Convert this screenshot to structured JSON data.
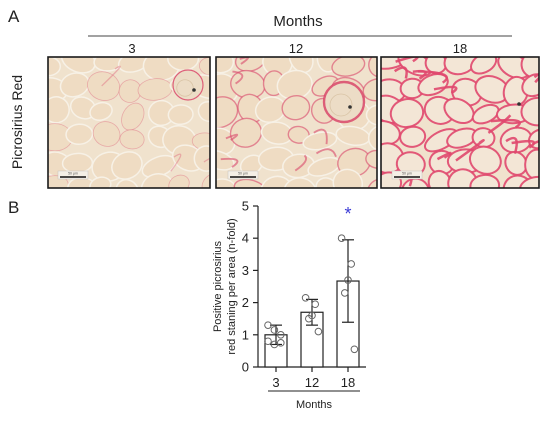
{
  "panel_a": {
    "label": "A",
    "group_title": "Months",
    "stain_label": "Picrosirius Red",
    "images": [
      {
        "month": "3",
        "scale_text": "50 μm",
        "pink": "#d9486a",
        "texture": "light",
        "vessel": true
      },
      {
        "month": "12",
        "scale_text": "50 μm",
        "pink": "#d9486a",
        "texture": "medium",
        "vessel": true
      },
      {
        "month": "18",
        "scale_text": "50 μm",
        "pink": "#e0486e",
        "texture": "heavy",
        "vessel": false
      }
    ],
    "colors": {
      "tissue": "#f0e2cd",
      "fiber_border": "#f7f1e6",
      "frame": "#1a1a1a"
    }
  },
  "panel_b": {
    "label": "B",
    "significance_marker": "*",
    "significance_color": "#3b3bd6"
  },
  "chart_data": {
    "type": "bar",
    "categories": [
      "3",
      "12",
      "18"
    ],
    "values": [
      1.0,
      1.7,
      2.67
    ],
    "error": [
      0.3,
      0.4,
      1.28
    ],
    "points": [
      [
        1.3,
        1.0,
        0.7,
        1.15,
        0.75,
        0.8
      ],
      [
        2.15,
        1.95,
        1.6,
        1.5,
        1.1
      ],
      [
        4.0,
        3.2,
        2.7,
        2.3,
        0.55
      ]
    ],
    "xlabel": "Months",
    "ylabel": "Positive picrosirius red staning per area (n-fold)",
    "ylim": [
      0,
      5
    ],
    "yticks": [
      0,
      1,
      2,
      3,
      4,
      5
    ],
    "significance": [
      {
        "category": "18",
        "marker": "*"
      }
    ],
    "bar_fill": "#ffffff",
    "point_color": "#666666",
    "grid": false,
    "legend": "none"
  }
}
